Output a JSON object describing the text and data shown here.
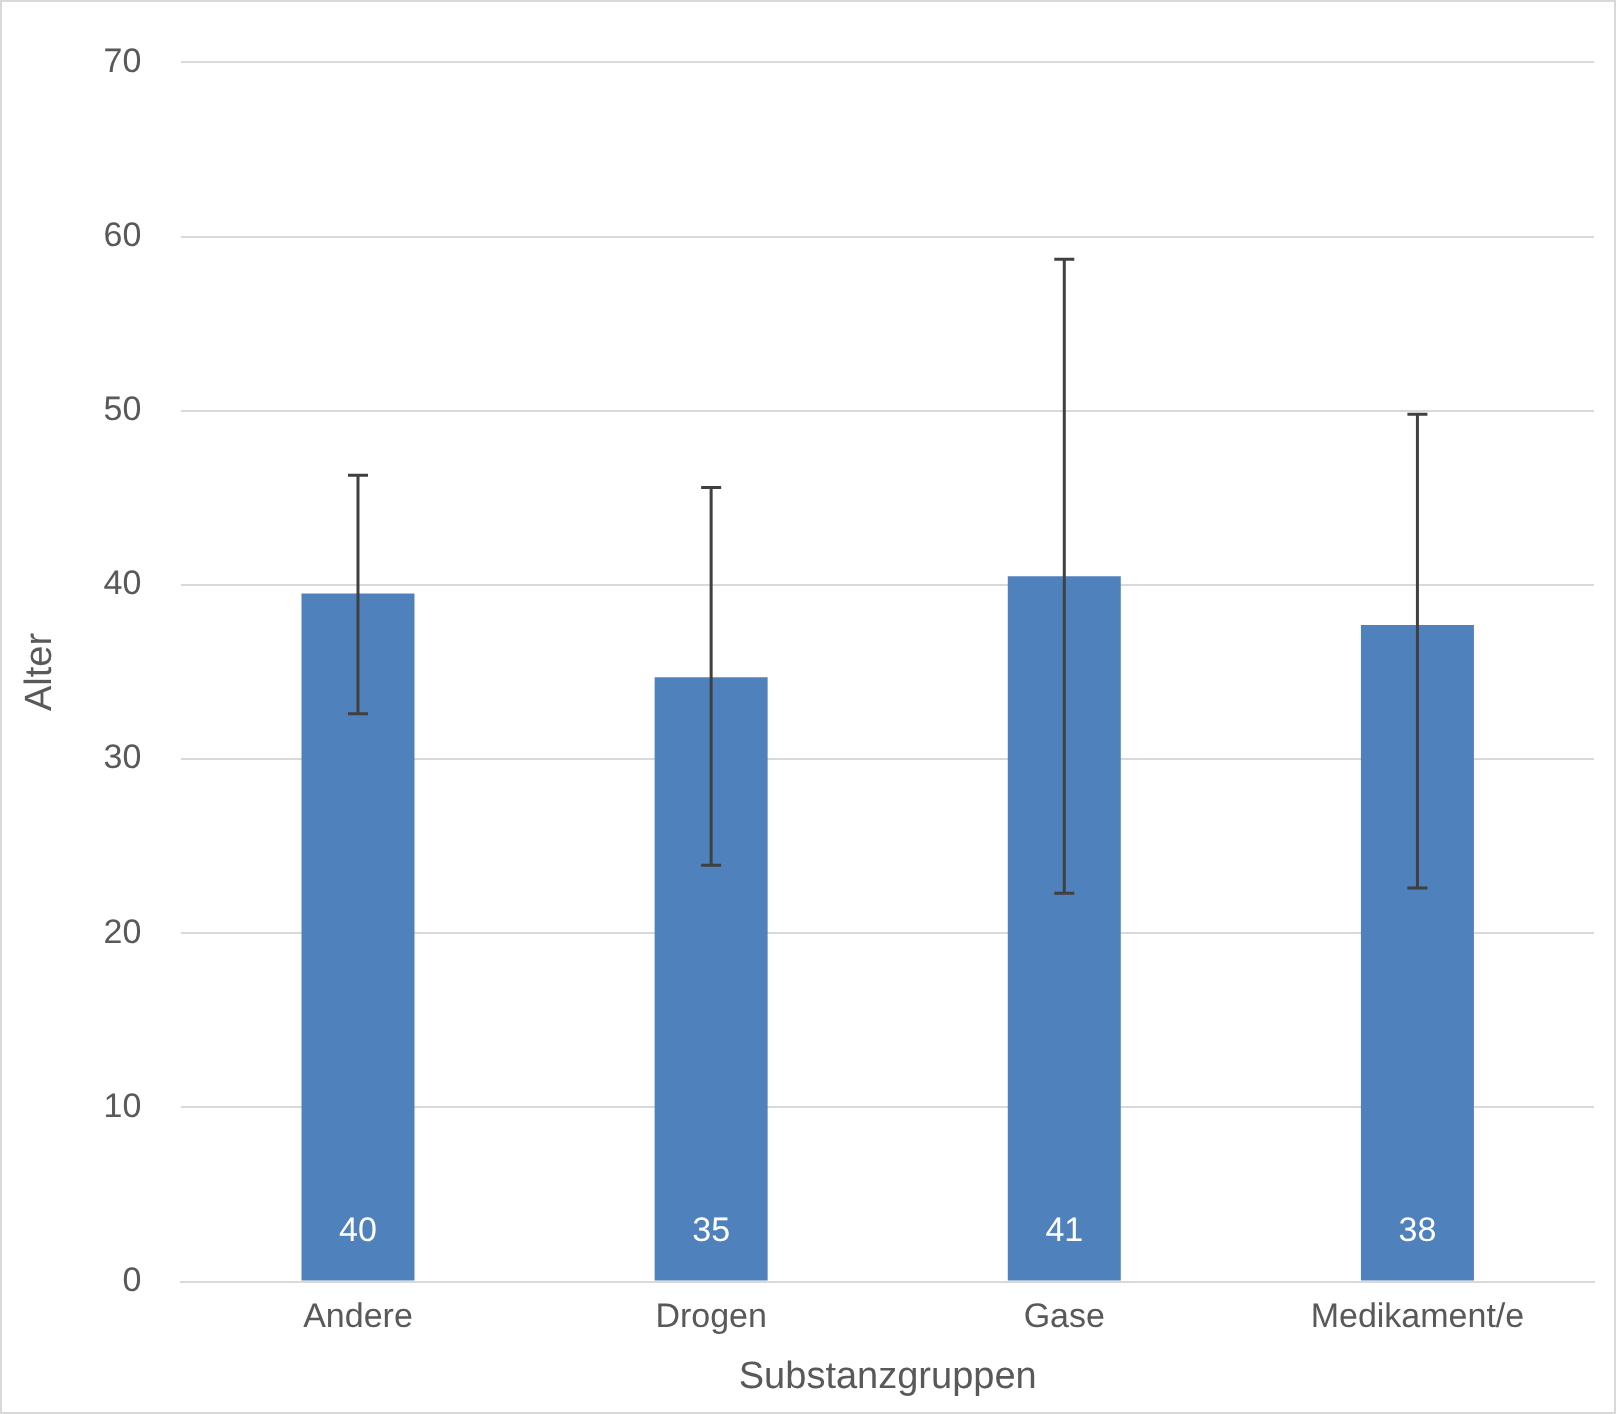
{
  "chart_data": {
    "type": "bar",
    "xlabel": "Substanzgruppen",
    "ylabel": "Alter",
    "categories": [
      "Andere",
      "Drogen",
      "Gase",
      "Medikament/e"
    ],
    "series": [
      {
        "color": "#4f81bd",
        "values": [
          39.5,
          34.7,
          40.5,
          37.7
        ],
        "errors": [
          [
            32.6,
            46.3
          ],
          [
            23.9,
            45.6
          ],
          [
            22.3,
            58.7
          ],
          [
            22.6,
            49.8
          ]
        ],
        "value_labels": [
          "40",
          "35",
          "41",
          "38"
        ]
      }
    ],
    "ylim": [
      0,
      70
    ],
    "yticks": [
      0,
      10,
      20,
      30,
      40,
      50,
      60,
      70
    ],
    "grid": "y",
    "legend": false
  }
}
